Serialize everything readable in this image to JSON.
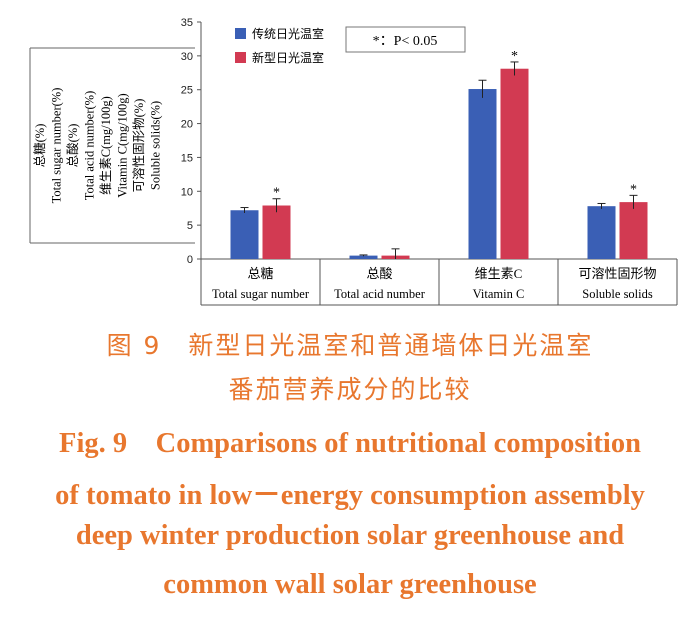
{
  "chart_data": {
    "type": "bar",
    "categories": [
      {
        "zh": "总糖",
        "en": "Total sugar number"
      },
      {
        "zh": "总酸",
        "en": "Total acid number"
      },
      {
        "zh": "维生素C",
        "en": "Vitamin C"
      },
      {
        "zh": "可溶性固形物",
        "en": "Soluble solids"
      }
    ],
    "series": [
      {
        "name": "传统日光温室",
        "color": "#3a5fb5",
        "values": [
          7.2,
          0.5,
          25.1,
          7.8
        ],
        "errors": [
          0.4,
          0.1,
          1.3,
          0.4
        ]
      },
      {
        "name": "新型日光温室",
        "color": "#d23a52",
        "values": [
          7.9,
          0.5,
          28.1,
          8.4
        ],
        "errors": [
          1.0,
          1.0,
          1.0,
          1.0
        ]
      }
    ],
    "significance": [
      "*",
      "",
      "*",
      "*"
    ],
    "significance_note": "*：P< 0.05",
    "ylim": [
      0,
      35
    ],
    "yticks": [
      0,
      5,
      10,
      15,
      20,
      25,
      30,
      35
    ],
    "ylabel_lines": [
      "总糖(%)",
      "Total sugar number(%)",
      "总酸(%)",
      "Total acid number(%)",
      "维生素C(mg/100g)",
      "Vitamin C(mg/100g)",
      "可溶性固形物(%)",
      "Soluble solids(%)"
    ],
    "legend_position": "top-left"
  },
  "caption": {
    "zh_line1": "图 9　新型日光温室和普通墙体日光温室",
    "zh_line2": "番茄营养成分的比较",
    "en_lines": [
      "Fig. 9　Comparisons of nutritional composition",
      "of tomato in low－energy consumption assembly",
      "deep winter production solar greenhouse and",
      "common wall solar greenhouse"
    ]
  }
}
